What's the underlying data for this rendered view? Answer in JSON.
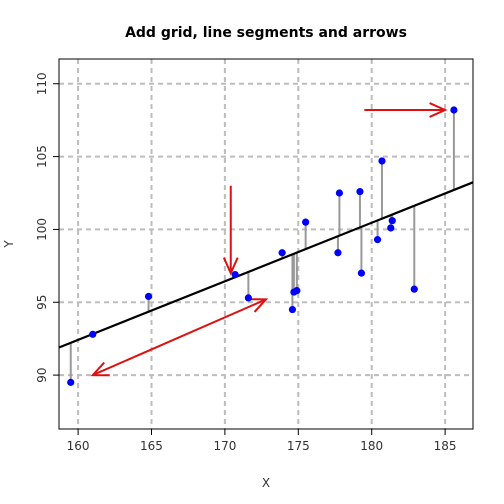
{
  "chart_data": {
    "type": "scatter",
    "title": "Add grid, line segments and arrows",
    "xlabel": "X",
    "ylabel": "Y",
    "xlim": [
      158.7,
      186.9
    ],
    "ylim": [
      86.3,
      111.7
    ],
    "xticks": [
      160,
      165,
      170,
      175,
      180,
      185
    ],
    "yticks": [
      90,
      95,
      100,
      105,
      110
    ],
    "grid": true,
    "grid_style": "dashed",
    "points": [
      {
        "x": 159.5,
        "y": 89.5
      },
      {
        "x": 161.0,
        "y": 92.8
      },
      {
        "x": 164.8,
        "y": 95.4
      },
      {
        "x": 170.7,
        "y": 96.9
      },
      {
        "x": 171.6,
        "y": 95.3
      },
      {
        "x": 173.9,
        "y": 98.4
      },
      {
        "x": 174.6,
        "y": 94.5
      },
      {
        "x": 174.7,
        "y": 95.7
      },
      {
        "x": 174.9,
        "y": 95.8
      },
      {
        "x": 175.5,
        "y": 100.5
      },
      {
        "x": 177.7,
        "y": 98.4
      },
      {
        "x": 177.8,
        "y": 102.5
      },
      {
        "x": 179.2,
        "y": 102.6
      },
      {
        "x": 179.3,
        "y": 97.0
      },
      {
        "x": 180.4,
        "y": 99.3
      },
      {
        "x": 180.7,
        "y": 104.7
      },
      {
        "x": 181.3,
        "y": 100.1
      },
      {
        "x": 181.4,
        "y": 100.6
      },
      {
        "x": 182.9,
        "y": 95.9
      },
      {
        "x": 185.6,
        "y": 108.2
      }
    ],
    "regression_line": {
      "intercept": 28.1,
      "slope": 0.402
    },
    "arrows": [
      {
        "x0": 170.4,
        "y0": 103.0,
        "x1": 170.4,
        "y1": 97.0
      },
      {
        "x0": 179.5,
        "y0": 108.2,
        "x1": 185.0,
        "y1": 108.2
      },
      {
        "x0": 161.0,
        "y0": 90.0,
        "x1": 172.8,
        "y1": 95.2,
        "double": true
      }
    ],
    "colors": {
      "points": "#0000ff",
      "segments": "#999999",
      "line": "#000000",
      "arrows": "#dd1111",
      "grid": "#bdbdbd"
    }
  }
}
